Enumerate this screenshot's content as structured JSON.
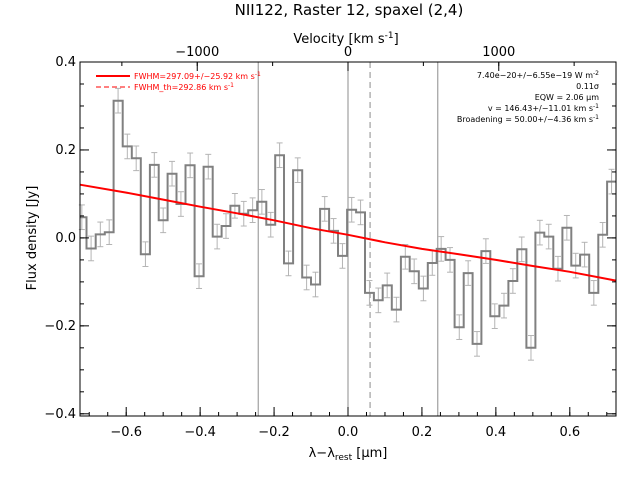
{
  "chart_data": {
    "type": "line",
    "title": "NII122, Raster 12, spaxel (2,4)",
    "xlabel": "λ−λ",
    "xlabel_sub": "rest",
    "xlabel_unit": " [μm]",
    "ylabel": "Flux density [Jy]",
    "top_axis_label": "Velocity [km s",
    "top_axis_label_sup": "-1",
    "top_axis_label_end": "]",
    "xlim": [
      -0.725,
      0.725
    ],
    "ylim": [
      -0.405,
      0.4
    ],
    "x_ticks": [
      -0.6,
      -0.4,
      -0.2,
      0.0,
      0.2,
      0.4,
      0.6
    ],
    "x_tick_labels": [
      "−0.6",
      "−0.4",
      "−0.2",
      "0.0",
      "0.2",
      "0.4",
      "0.6"
    ],
    "y_ticks": [
      -0.4,
      -0.2,
      0.0,
      0.2,
      0.4
    ],
    "y_tick_labels": [
      "−0.4",
      "−0.2",
      "0.0",
      "0.2",
      "0.4"
    ],
    "top_ticks": [
      -1000,
      0,
      1000
    ],
    "top_tick_labels": [
      "−1000",
      "0",
      "1000"
    ],
    "km_s_per_um": 2452,
    "vertical_lines": [
      {
        "x": -0.2429,
        "style": "solid"
      },
      {
        "x": 0.0,
        "style": "solid"
      },
      {
        "x": 0.0597,
        "style": "dashed"
      },
      {
        "x": 0.2429,
        "style": "solid"
      }
    ],
    "legend": [
      {
        "label": "FWHM=297.09+/−25.92 km s",
        "sup": "-1",
        "style": "solid",
        "color": "#ff0000"
      },
      {
        "label": "FWHM_th=292.86 km s",
        "sup": "-1",
        "style": "dashed",
        "color": "#ff0000"
      }
    ],
    "annotations": [
      {
        "text": "7.40e−20+/−6.55e−19 W m",
        "sup": "-2"
      },
      {
        "text": "0.11σ",
        "sup": ""
      },
      {
        "text": "EQW = 2.06 μm",
        "sup": ""
      },
      {
        "text": "v = 146.43+/−11.01 km s",
        "sup": "-1"
      },
      {
        "text": "Broadening = 50.00+/−4.36 km s",
        "sup": "-1"
      }
    ],
    "series": [
      {
        "style": "step",
        "color": "#808080",
        "x": [
          -0.72,
          -0.695,
          -0.67,
          -0.646,
          -0.622,
          -0.597,
          -0.573,
          -0.548,
          -0.524,
          -0.5,
          -0.476,
          -0.452,
          -0.427,
          -0.403,
          -0.378,
          -0.354,
          -0.33,
          -0.306,
          -0.282,
          -0.258,
          -0.233,
          -0.209,
          -0.185,
          -0.161,
          -0.136,
          -0.112,
          -0.088,
          -0.063,
          -0.039,
          -0.015,
          0.01,
          0.034,
          0.058,
          0.082,
          0.106,
          0.131,
          0.155,
          0.179,
          0.204,
          0.228,
          0.252,
          0.276,
          0.301,
          0.325,
          0.349,
          0.373,
          0.397,
          0.422,
          0.446,
          0.47,
          0.495,
          0.519,
          0.543,
          0.568,
          0.592,
          0.616,
          0.64,
          0.665,
          0.689,
          0.713
        ],
        "y": [
          0.047,
          -0.024,
          0.008,
          0.013,
          0.312,
          0.208,
          0.181,
          -0.037,
          0.166,
          0.04,
          0.146,
          0.077,
          0.165,
          -0.087,
          0.162,
          0.003,
          0.027,
          0.073,
          0.055,
          0.063,
          0.082,
          0.03,
          0.188,
          -0.058,
          0.154,
          -0.09,
          -0.106,
          0.066,
          0.016,
          -0.041,
          0.064,
          0.058,
          -0.125,
          -0.142,
          -0.108,
          -0.163,
          -0.043,
          -0.076,
          -0.115,
          -0.057,
          -0.025,
          -0.05,
          -0.203,
          -0.08,
          -0.241,
          -0.03,
          -0.178,
          -0.154,
          -0.098,
          -0.026,
          -0.25,
          0.012,
          0.003,
          -0.07,
          0.023,
          -0.063,
          -0.038,
          -0.125,
          0.007,
          0.128
        ],
        "err": 0.028
      },
      {
        "style": "solid",
        "color": "#ff0000",
        "x": [
          -0.725,
          -0.6,
          -0.5,
          -0.4,
          -0.3,
          -0.2,
          -0.1,
          0.0,
          0.1,
          0.2,
          0.3,
          0.4,
          0.5,
          0.6,
          0.725
        ],
        "y": [
          0.121,
          0.103,
          0.087,
          0.071,
          0.056,
          0.04,
          0.022,
          0.007,
          -0.01,
          -0.025,
          -0.037,
          -0.05,
          -0.064,
          -0.077,
          -0.097
        ]
      },
      {
        "style": "dashed",
        "color": "#ff0000",
        "x": [
          -0.725,
          -0.6,
          -0.5,
          -0.4,
          -0.3,
          -0.2,
          -0.1,
          0.0,
          0.1,
          0.2,
          0.3,
          0.4,
          0.5,
          0.6,
          0.725
        ],
        "y": [
          0.121,
          0.103,
          0.087,
          0.071,
          0.056,
          0.04,
          0.022,
          0.007,
          -0.01,
          -0.025,
          -0.037,
          -0.05,
          -0.064,
          -0.077,
          -0.097
        ]
      }
    ]
  }
}
